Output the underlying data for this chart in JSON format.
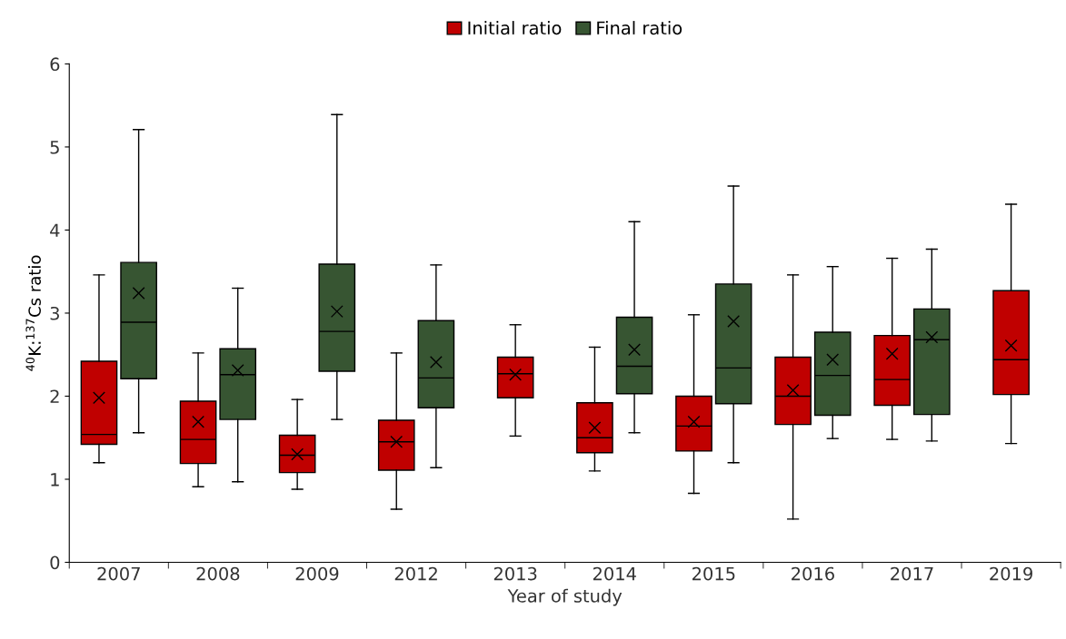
{
  "chart_data": {
    "type": "box",
    "xlabel": "Year of study",
    "ylabel": "$^{40}$K:$^{137}$Cs ratio",
    "categories": [
      "2007",
      "2008",
      "2009",
      "2012",
      "2013",
      "2014",
      "2015",
      "2016",
      "2017",
      "2019"
    ],
    "ylim": [
      0,
      6
    ],
    "yticks": [
      0,
      1,
      2,
      3,
      4,
      5,
      6
    ],
    "grid": false,
    "legend": "top",
    "marker": "cross",
    "series": [
      {
        "name": "Initial ratio",
        "color": "#c00000",
        "boxes": [
          {
            "low": 1.2,
            "q1": 1.42,
            "median": 1.54,
            "q3": 2.42,
            "high": 3.46,
            "mean": 1.98
          },
          {
            "low": 0.91,
            "q1": 1.19,
            "median": 1.48,
            "q3": 1.94,
            "high": 2.52,
            "mean": 1.69
          },
          {
            "low": 0.88,
            "q1": 1.08,
            "median": 1.29,
            "q3": 1.53,
            "high": 1.96,
            "mean": 1.3
          },
          {
            "low": 0.64,
            "q1": 1.11,
            "median": 1.45,
            "q3": 1.71,
            "high": 2.52,
            "mean": 1.45
          },
          {
            "low": 1.52,
            "q1": 1.98,
            "median": 2.27,
            "q3": 2.47,
            "high": 2.86,
            "mean": 2.26
          },
          {
            "low": 1.1,
            "q1": 1.32,
            "median": 1.5,
            "q3": 1.92,
            "high": 2.59,
            "mean": 1.62
          },
          {
            "low": 0.83,
            "q1": 1.34,
            "median": 1.64,
            "q3": 2.0,
            "high": 2.98,
            "mean": 1.69
          },
          {
            "low": 0.52,
            "q1": 1.66,
            "median": 2.0,
            "q3": 2.47,
            "high": 3.46,
            "mean": 2.07
          },
          {
            "low": 1.48,
            "q1": 1.89,
            "median": 2.2,
            "q3": 2.73,
            "high": 3.66,
            "mean": 2.51
          },
          {
            "low": 1.43,
            "q1": 2.02,
            "median": 2.44,
            "q3": 3.27,
            "high": 4.31,
            "mean": 2.61
          }
        ]
      },
      {
        "name": "Final ratio",
        "color": "#375532",
        "boxes": [
          {
            "low": 1.56,
            "q1": 2.21,
            "median": 2.89,
            "q3": 3.61,
            "high": 5.21,
            "mean": 3.24
          },
          {
            "low": 0.97,
            "q1": 1.72,
            "median": 2.26,
            "q3": 2.57,
            "high": 3.3,
            "mean": 2.31
          },
          {
            "low": 1.72,
            "q1": 2.3,
            "median": 2.78,
            "q3": 3.59,
            "high": 5.39,
            "mean": 3.02
          },
          {
            "low": 1.14,
            "q1": 1.86,
            "median": 2.22,
            "q3": 2.91,
            "high": 3.58,
            "mean": 2.41
          },
          null,
          {
            "low": 1.56,
            "q1": 2.03,
            "median": 2.36,
            "q3": 2.95,
            "high": 4.1,
            "mean": 2.56
          },
          {
            "low": 1.2,
            "q1": 1.91,
            "median": 2.34,
            "q3": 3.35,
            "high": 4.53,
            "mean": 2.9
          },
          {
            "low": 1.49,
            "q1": 1.77,
            "median": 2.25,
            "q3": 2.77,
            "high": 3.56,
            "mean": 2.44
          },
          {
            "low": 1.46,
            "q1": 1.78,
            "median": 2.68,
            "q3": 3.05,
            "high": 3.77,
            "mean": 2.71
          },
          null
        ]
      }
    ]
  }
}
